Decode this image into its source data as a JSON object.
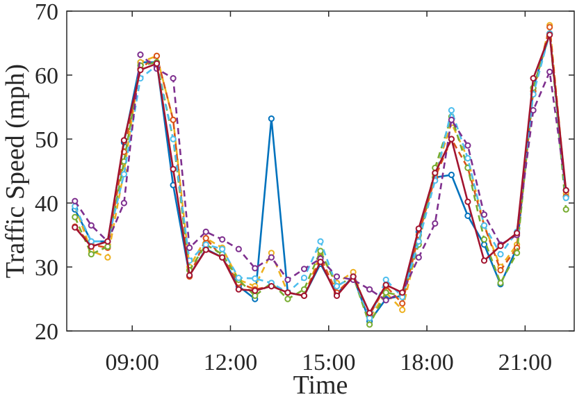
{
  "chart_data": {
    "type": "line",
    "title": "",
    "xlabel": "Time",
    "ylabel": "Traffic Speed (mph)",
    "xlim": [
      7.0,
      22.5
    ],
    "ylim": [
      20,
      70
    ],
    "x_ticks": [
      9,
      12,
      15,
      18,
      21
    ],
    "x_tick_labels": [
      "09:00",
      "12:00",
      "15:00",
      "18:00",
      "21:00"
    ],
    "y_ticks": [
      20,
      30,
      40,
      50,
      60,
      70
    ],
    "y_tick_labels": [
      "20",
      "30",
      "40",
      "50",
      "60",
      "70"
    ],
    "grid": false,
    "legend": "none",
    "x": [
      7.25,
      7.75,
      8.25,
      8.75,
      9.25,
      9.75,
      10.25,
      10.75,
      11.25,
      11.75,
      12.25,
      12.75,
      13.25,
      13.75,
      14.25,
      14.75,
      15.25,
      15.75,
      16.25,
      16.75,
      17.25,
      17.75,
      18.25,
      18.75,
      19.25,
      19.75,
      20.25,
      20.75,
      21.25,
      21.75,
      22.25
    ],
    "series": [
      {
        "color": "#0072BD",
        "dash": "solid",
        "values": [
          39.0,
          34.0,
          34.0,
          49.5,
          62.0,
          62.0,
          42.8,
          28.7,
          32.8,
          31.5,
          27.0,
          25.0,
          53.2,
          26.0,
          25.5,
          30.5,
          25.8,
          28.5,
          21.5,
          25.0,
          25.5,
          35.5,
          44.0,
          44.4,
          38.0,
          33.5,
          27.3,
          33.0,
          58.0,
          66.5,
          41.0
        ]
      },
      {
        "color": "#EDB120",
        "dash": "dashed",
        "values": [
          39.5,
          32.5,
          31.5,
          45.0,
          62.0,
          63.0,
          53.0,
          30.0,
          34.5,
          33.0,
          28.0,
          27.0,
          32.2,
          26.0,
          25.5,
          32.0,
          27.5,
          29.2,
          22.0,
          26.0,
          23.3,
          34.0,
          44.5,
          52.5,
          47.0,
          36.5,
          30.0,
          33.5,
          57.0,
          67.8,
          41.5
        ]
      },
      {
        "color": "#D95319",
        "dash": "dashed",
        "values": [
          36.3,
          33.5,
          33.0,
          48.0,
          61.0,
          63.0,
          53.0,
          28.5,
          34.5,
          31.5,
          27.5,
          26.5,
          27.0,
          26.0,
          25.5,
          31.5,
          26.0,
          28.5,
          22.5,
          27.0,
          24.3,
          35.0,
          44.0,
          50.0,
          45.5,
          36.5,
          29.5,
          33.0,
          57.5,
          67.5,
          41.0
        ]
      },
      {
        "color": "#77AC30",
        "dash": "dashed",
        "values": [
          37.8,
          32.0,
          33.2,
          46.5,
          61.5,
          62.0,
          50.0,
          29.5,
          33.5,
          32.0,
          28.0,
          25.5,
          27.5,
          25.0,
          26.5,
          32.5,
          27.0,
          28.5,
          21.0,
          26.0,
          25.5,
          33.5,
          45.5,
          53.5,
          45.5,
          34.3,
          27.5,
          32.2,
          58.0,
          66.5,
          39.0
        ]
      },
      {
        "color": "#4DBEEE",
        "dash": "dashed",
        "values": [
          39.5,
          34.0,
          34.0,
          44.5,
          59.5,
          61.5,
          50.0,
          31.0,
          33.5,
          32.8,
          28.3,
          28.2,
          27.5,
          26.0,
          28.3,
          34.0,
          27.0,
          28.5,
          22.0,
          28.0,
          25.3,
          34.0,
          43.5,
          54.5,
          47.0,
          36.5,
          32.0,
          35.5,
          57.0,
          66.5,
          40.8
        ]
      },
      {
        "color": "#7E2F8E",
        "dash": "dashed",
        "values": [
          40.3,
          36.5,
          34.0,
          40.0,
          63.2,
          61.0,
          59.5,
          33.0,
          35.5,
          34.3,
          32.8,
          29.8,
          31.5,
          28.0,
          29.7,
          31.3,
          28.5,
          28.0,
          26.5,
          24.8,
          26.0,
          31.5,
          36.8,
          53.0,
          49.0,
          38.2,
          33.5,
          35.0,
          54.5,
          60.5,
          42.0
        ]
      },
      {
        "color": "#A2142F",
        "dash": "solid",
        "values": [
          36.2,
          33.2,
          34.0,
          49.8,
          60.8,
          61.8,
          45.3,
          28.7,
          32.7,
          31.5,
          26.5,
          26.3,
          27.0,
          26.0,
          25.5,
          30.8,
          25.5,
          28.5,
          22.8,
          27.2,
          26.0,
          36.0,
          44.7,
          50.0,
          40.2,
          31.0,
          33.3,
          35.3,
          59.5,
          66.3,
          42.0
        ]
      }
    ]
  }
}
